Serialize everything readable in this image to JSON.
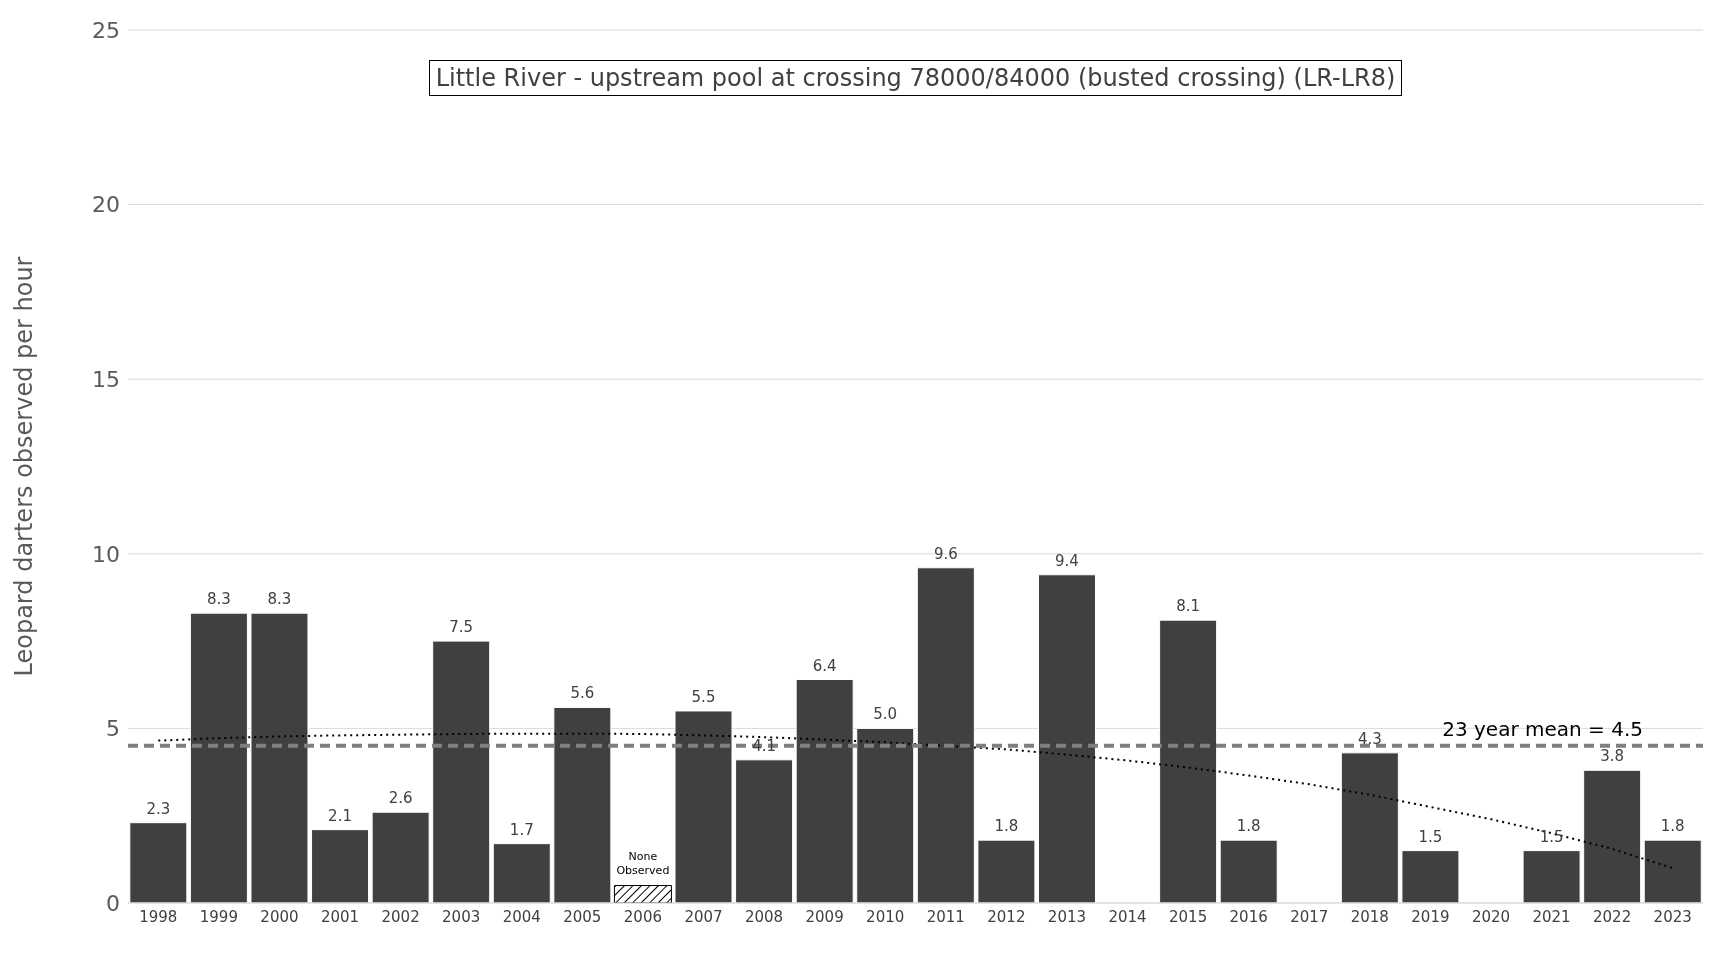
{
  "chart_data": {
    "type": "bar",
    "title": "Little River - upstream pool at crossing 78000/84000 (busted crossing) (LR-LR8)",
    "ylabel": "Leopard darters observed per hour",
    "categories": [
      "1998",
      "1999",
      "2000",
      "2001",
      "2002",
      "2003",
      "2004",
      "2005",
      "2006",
      "2007",
      "2008",
      "2009",
      "2010",
      "2011",
      "2012",
      "2013",
      "2014",
      "2015",
      "2016",
      "2017",
      "2018",
      "2019",
      "2020",
      "2021",
      "2022",
      "2023"
    ],
    "series": [
      {
        "color": "#404040",
        "values": [
          2.3,
          8.3,
          8.3,
          2.1,
          2.6,
          7.5,
          1.7,
          5.6,
          null,
          5.5,
          4.1,
          6.4,
          5.0,
          9.6,
          1.8,
          9.4,
          null,
          8.1,
          1.8,
          null,
          4.3,
          1.5,
          null,
          1.5,
          3.8,
          1.8
        ],
        "value_labels": [
          "2.3",
          "8.3",
          "8.3",
          "2.1",
          "2.6",
          "7.5",
          "1.7",
          "5.6",
          null,
          "5.5",
          "4.1",
          "6.4",
          "5.0",
          "9.6",
          "1.8",
          "9.4",
          null,
          "8.1",
          "1.8",
          null,
          "4.3",
          "1.5",
          null,
          "1.5",
          "3.8",
          "1.8"
        ]
      },
      {
        "type": "line",
        "color": "#000000",
        "line_style": "dotted",
        "marker": "none",
        "values": [
          4.65,
          4.72,
          4.77,
          4.8,
          4.82,
          4.84,
          4.85,
          4.85,
          4.84,
          4.8,
          4.75,
          4.68,
          4.6,
          4.5,
          4.4,
          4.25,
          4.08,
          3.88,
          3.65,
          3.4,
          3.1,
          2.75,
          2.4,
          2.0,
          1.55,
          1.0
        ]
      },
      {
        "color": "#000000",
        "values": [
          null,
          null,
          null,
          null,
          null,
          null,
          null,
          null,
          0.5,
          null,
          null,
          null,
          null,
          null,
          null,
          null,
          null,
          null,
          null,
          null,
          null,
          null,
          null,
          null,
          null,
          null
        ]
      }
    ],
    "stacked": true,
    "ylim": [
      0,
      25
    ],
    "yticks": [
      0,
      5,
      10,
      15,
      20,
      25
    ],
    "grid": "y",
    "ref_lines": [
      {
        "axis": "y",
        "value": 4.5,
        "label": "23 year mean = 4.5",
        "color": "#7f7f7f",
        "line_style": "dashed"
      }
    ],
    "annotations": [
      {
        "text": "None Observed",
        "x": "2006",
        "y": 0.5
      }
    ]
  }
}
